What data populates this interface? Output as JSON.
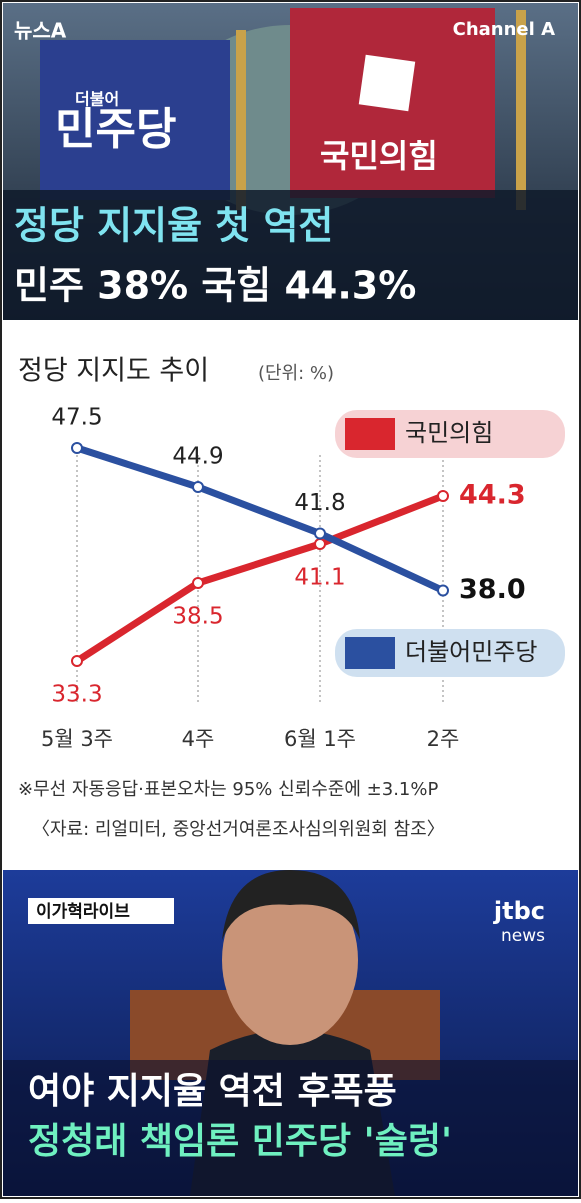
{
  "top_image": {
    "logo_left": "뉴스A",
    "logo_right": "Channel A",
    "banner_left_small": "더불어",
    "banner_left": "민주당",
    "banner_right": "국민의힘",
    "headline_1": "정당 지지율 첫 역전",
    "headline_2": "민주 38% 국힘 44.3%"
  },
  "chart_data": {
    "type": "line",
    "title": "정당 지지도 추이",
    "subtitle": "(단위: %)",
    "categories": [
      "5월 3주",
      "4주",
      "6월 1주",
      "2주"
    ],
    "series": [
      {
        "name": "국민의힘",
        "color": "#d9262e",
        "values": [
          33.3,
          38.5,
          41.1,
          44.3
        ]
      },
      {
        "name": "더불어민주당",
        "color": "#2b50a0",
        "values": [
          47.5,
          44.9,
          41.8,
          38.0
        ],
        "value_labels": [
          "47.5",
          "44.9",
          "41.8",
          "38.0"
        ]
      }
    ],
    "notes": [
      "※무선 자동응답·표본오차는 95% 신뢰수준에 ±3.1%P",
      "〈자료: 리얼미터, 중앙선거여론조사심의위원회 참조〉"
    ]
  },
  "bottom_image": {
    "tag": "이가혁라이브",
    "logo_1": "jtbc",
    "logo_2": "news",
    "headline_1": "여야 지지율 역전 후폭풍",
    "headline_2": "정청래 책임론 민주당 '술렁'"
  }
}
